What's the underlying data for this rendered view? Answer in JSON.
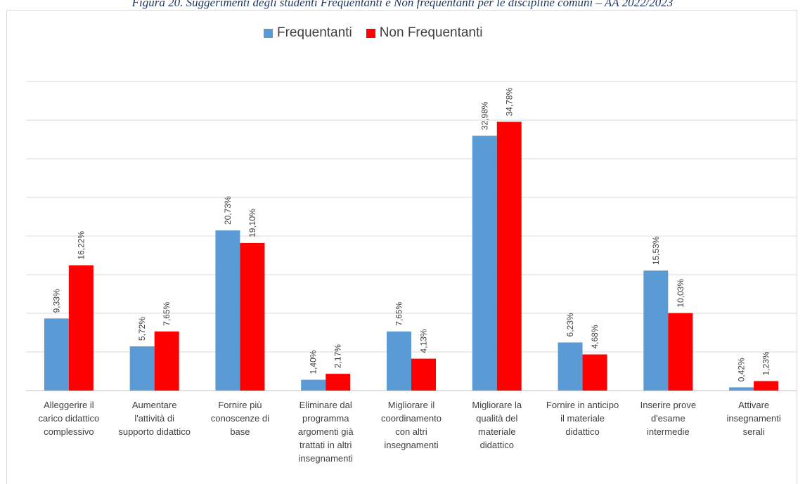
{
  "caption": "Figura 20. Suggerimenti degli studenti Frequentanti e Non frequentanti per le discipline comuni – AA 2022/2023",
  "colors": {
    "frequentanti": "#5b9bd5",
    "non_frequentanti": "#ff0000",
    "grid": "#d9d9d9",
    "axis": "#bfbfbf"
  },
  "chart_data": {
    "type": "bar",
    "categories": [
      [
        "Alleggerire il",
        "carico didattico",
        "complessivo"
      ],
      [
        "Aumentare",
        "l'attività di",
        "supporto didattico"
      ],
      [
        "Fornire più",
        "conoscenze di",
        "base"
      ],
      [
        "Eliminare dal",
        "programma",
        "argomenti già",
        "trattati in altri",
        "insegnamenti"
      ],
      [
        "Migliorare il",
        "coordinamento",
        "con altri",
        "insegnamenti"
      ],
      [
        "Migliorare la",
        "qualità del",
        "materiale",
        "didattico"
      ],
      [
        "Fornire in anticipo",
        "il materiale",
        "didattico"
      ],
      [
        "Inserire prove",
        "d'esame",
        "intermedie"
      ],
      [
        "Attivare",
        "insegnamenti",
        "serali"
      ]
    ],
    "series": [
      {
        "name": "Frequentanti",
        "values": [
          9.33,
          5.72,
          20.73,
          1.4,
          7.65,
          32.98,
          6.23,
          15.53,
          0.42
        ],
        "labels": [
          "9,33%",
          "5,72%",
          "20,73%",
          "1,40%",
          "7,65%",
          "32,98%",
          "6,23%",
          "15,53%",
          "0,42%"
        ]
      },
      {
        "name": "Non Frequentanti",
        "values": [
          16.22,
          7.65,
          19.1,
          2.17,
          4.13,
          34.78,
          4.68,
          10.03,
          1.23
        ],
        "labels": [
          "16,22%",
          "7,65%",
          "19,10%",
          "2,17%",
          "4,13%",
          "34,78%",
          "4,68%",
          "10,03%",
          "1,23%"
        ]
      }
    ],
    "ylim": [
      0,
      40
    ],
    "grid": true,
    "legend": "top"
  }
}
